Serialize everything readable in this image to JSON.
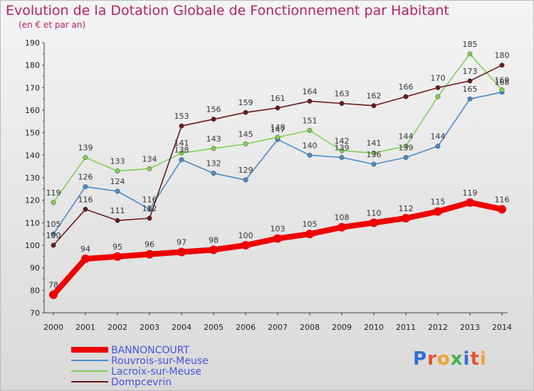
{
  "title": "Evolution de la Dotation Globale de Fonctionnement par Habitant",
  "subtitle": "(en € et par an)",
  "logo_text": "Proxiti",
  "chart_data": {
    "type": "line",
    "title": "Evolution de la Dotation Globale de Fonctionnement par Habitant",
    "subtitle": "(en € et par an)",
    "x": [
      "2000",
      "2001",
      "2002",
      "2003",
      "2004",
      "2005",
      "2006",
      "2007",
      "2008",
      "2009",
      "2010",
      "2011",
      "2012",
      "2013",
      "2014"
    ],
    "ylim": [
      70,
      190
    ],
    "yticks": [
      70,
      80,
      90,
      100,
      110,
      120,
      130,
      140,
      150,
      160,
      170,
      180,
      190
    ],
    "grid": false,
    "legend_position": "bottom-left",
    "series": [
      {
        "name": "BANNONCOURT",
        "color": "#ee0000",
        "values": [
          78,
          94,
          95,
          96,
          97,
          98,
          100,
          103,
          105,
          108,
          110,
          112,
          115,
          119,
          116
        ]
      },
      {
        "name": "Rouvrois-sur-Meuse",
        "color": "#4a8cc9",
        "values": [
          105,
          126,
          124,
          116,
          138,
          132,
          129,
          147,
          140,
          139,
          136,
          139,
          144,
          165,
          168
        ]
      },
      {
        "name": "Lacroix-sur-Meuse",
        "color": "#7fd155",
        "values": [
          119,
          139,
          133,
          134,
          141,
          143,
          145,
          148,
          151,
          142,
          141,
          144,
          166,
          185,
          169
        ]
      },
      {
        "name": "Dompcevrin",
        "color": "#6b1a1a",
        "values": [
          100,
          116,
          111,
          112,
          153,
          156,
          159,
          161,
          164,
          163,
          162,
          166,
          170,
          173,
          180
        ]
      }
    ],
    "data_labels": [
      [
        78,
        94,
        95,
        96,
        97,
        98,
        100,
        103,
        105,
        108,
        110,
        112,
        115,
        119,
        116
      ],
      [
        105,
        126,
        124,
        116,
        138,
        132,
        129,
        147,
        140,
        139,
        136,
        139,
        144,
        165,
        168
      ],
      [
        119,
        139,
        133,
        134,
        141,
        143,
        145,
        148,
        151,
        142,
        141,
        144,
        null,
        185,
        169
      ],
      [
        100,
        116,
        111,
        112,
        153,
        156,
        159,
        161,
        164,
        163,
        162,
        166,
        170,
        173,
        180
      ]
    ]
  }
}
